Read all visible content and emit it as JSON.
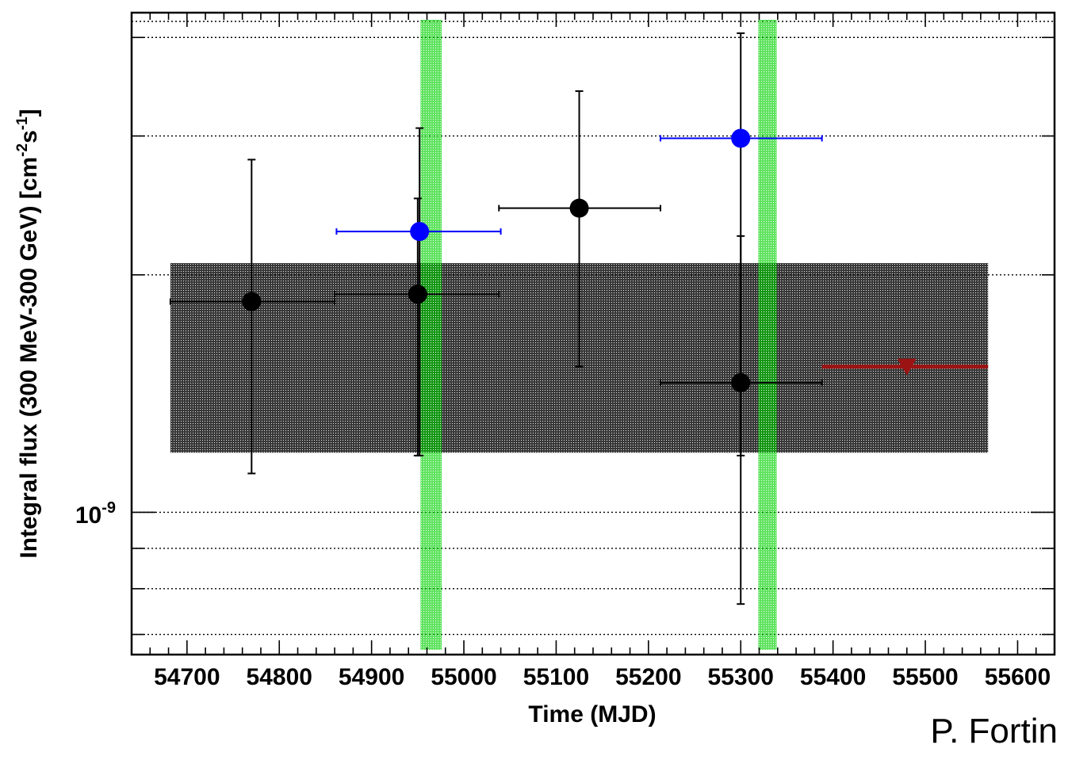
{
  "chart_data": {
    "type": "scatter",
    "xlabel": "Time (MJD)",
    "ylabel_parts": [
      "Integral flux (300 MeV-300 GeV) [cm",
      "-2",
      "s",
      "-1",
      "]"
    ],
    "y_tick_label": {
      "base": "10",
      "exp": "-9"
    },
    "y_scale": "log",
    "xlim": [
      54640,
      55640
    ],
    "ylim": [
      6.6e-10,
      4.3e-09
    ],
    "x_ticks": [
      54700,
      54800,
      54900,
      55000,
      55100,
      55200,
      55300,
      55400,
      55500,
      55600
    ],
    "y_grid_values": [
      7e-10,
      8e-10,
      9e-10,
      1e-09,
      2e-09,
      3e-09,
      4e-09
    ],
    "grid": true,
    "average_band": {
      "x": [
        54682,
        55568
      ],
      "y": [
        1.19e-09,
        2.07e-09
      ],
      "color": "#000000"
    },
    "shaded_periods": [
      {
        "x": [
          54953,
          54976
        ],
        "color": "#00d200"
      },
      {
        "x": [
          55319,
          55339
        ],
        "color": "#00d200"
      }
    ],
    "series": [
      {
        "color": "#000000",
        "points": [
          {
            "x": 54770,
            "y": 1.85e-09,
            "xerr": [
              54682,
              54860
            ],
            "yerr": [
              1.12e-09,
              2.8e-09
            ]
          },
          {
            "x": 54950,
            "y": 1.89e-09,
            "xerr": [
              54860,
              55038
            ],
            "yerr": [
              1.18e-09,
              2.5e-09
            ]
          },
          {
            "x": 55125,
            "y": 2.43e-09,
            "xerr": [
              55038,
              55213
            ],
            "yerr": [
              1.53e-09,
              3.42e-09
            ]
          },
          {
            "x": 55300,
            "y": 1.46e-09,
            "xerr": [
              55213,
              55388
            ],
            "yerr": [
              7.65e-10,
              2.24e-09
            ]
          }
        ]
      },
      {
        "color": "#0000ff",
        "points": [
          {
            "x": 54952,
            "y": 2.27e-09,
            "xerr": [
              54862,
              55040
            ],
            "yerr": [
              1.18e-09,
              3.07e-09
            ]
          },
          {
            "x": 55300,
            "y": 2.98e-09,
            "xerr": [
              55213,
              55388
            ],
            "yerr": [
              1.18e-09,
              4.05e-09
            ]
          }
        ]
      }
    ],
    "upper_limits": [
      {
        "x": 55480,
        "y": 1.53e-09,
        "xerr": [
          55388,
          55568
        ],
        "color": "#9b1414"
      }
    ]
  },
  "credit": "P. Fortin"
}
